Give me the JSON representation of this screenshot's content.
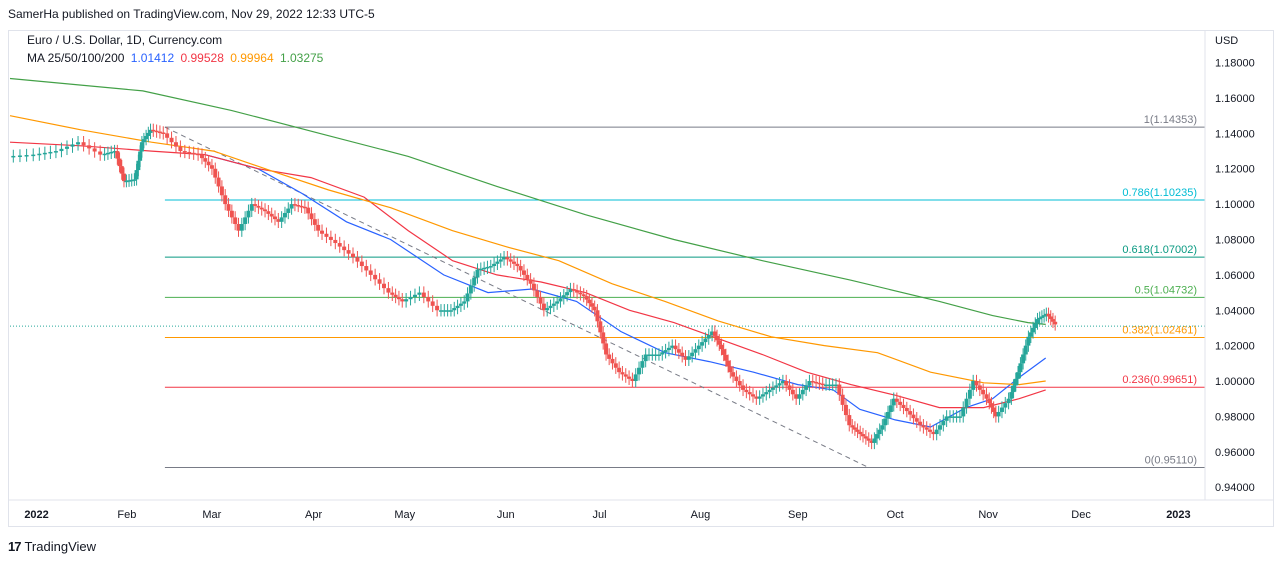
{
  "header": {
    "published_by": "SamerHa published on TradingView.com, Nov 29, 2022 12:33 UTC-5"
  },
  "legend": {
    "symbol_line": "Euro / U.S. Dollar, 1D, Currency.com",
    "ma_label": "MA 25/50/100/200",
    "ma_values": [
      {
        "value": "1.01412",
        "color": "#2962ff"
      },
      {
        "value": "0.99528",
        "color": "#f23645"
      },
      {
        "value": "0.99964",
        "color": "#ff9800"
      },
      {
        "value": "1.03275",
        "color": "#43a047"
      }
    ]
  },
  "footer": {
    "brand": "TradingView"
  },
  "chart_data": {
    "type": "candlestick",
    "title": "Euro / U.S. Dollar, 1D, Currency.com",
    "currency_label": "USD",
    "y_range": [
      0.935,
      1.186
    ],
    "y_ticks": [
      {
        "value": 1.18,
        "label": "1.18000"
      },
      {
        "value": 1.16,
        "label": "1.16000"
      },
      {
        "value": 1.14,
        "label": "1.14000"
      },
      {
        "value": 1.12,
        "label": "1.12000"
      },
      {
        "value": 1.1,
        "label": "1.10000"
      },
      {
        "value": 1.08,
        "label": "1.08000"
      },
      {
        "value": 1.06,
        "label": "1.06000"
      },
      {
        "value": 1.04,
        "label": "1.04000"
      },
      {
        "value": 1.02,
        "label": "1.02000"
      },
      {
        "value": 1.0,
        "label": "1.00000"
      },
      {
        "value": 0.98,
        "label": "0.98000"
      },
      {
        "value": 0.96,
        "label": "0.96000"
      },
      {
        "value": 0.94,
        "label": "0.94000"
      }
    ],
    "x_range": [
      0,
      13.5
    ],
    "x_ticks": [
      {
        "value": 0.3,
        "label": "2022",
        "bold": true
      },
      {
        "value": 1.32,
        "label": "Feb"
      },
      {
        "value": 2.28,
        "label": "Mar"
      },
      {
        "value": 3.43,
        "label": "Apr"
      },
      {
        "value": 4.46,
        "label": "May"
      },
      {
        "value": 5.6,
        "label": "Jun"
      },
      {
        "value": 6.66,
        "label": "Jul"
      },
      {
        "value": 7.8,
        "label": "Aug"
      },
      {
        "value": 8.9,
        "label": "Sep"
      },
      {
        "value": 10.0,
        "label": "Oct"
      },
      {
        "value": 11.05,
        "label": "Nov"
      },
      {
        "value": 12.1,
        "label": "Dec"
      },
      {
        "value": 13.2,
        "label": "2023",
        "bold": true
      }
    ],
    "fib_start_x": 1.75,
    "fib_levels": [
      {
        "level": "1",
        "value": 1.14353,
        "label": "1(1.14353)",
        "color": "#787b86"
      },
      {
        "level": "0.786",
        "value": 1.10235,
        "label": "0.786(1.10235)",
        "color": "#00bcd4"
      },
      {
        "level": "0.618",
        "value": 1.07002,
        "label": "0.618(1.07002)",
        "color": "#089981"
      },
      {
        "level": "0.5",
        "value": 1.04732,
        "label": "0.5(1.04732)",
        "color": "#4caf50"
      },
      {
        "level": "0.382",
        "value": 1.02461,
        "label": "0.382(1.02461)",
        "color": "#ff9800"
      },
      {
        "level": "0.236",
        "value": 0.99651,
        "label": "0.236(0.99651)",
        "color": "#f23645"
      },
      {
        "level": "0",
        "value": 0.9511,
        "label": "0(0.95110)",
        "color": "#787b86"
      }
    ],
    "trend_line": {
      "from": [
        1.75,
        1.14353
      ],
      "to": [
        9.7,
        0.9511
      ],
      "color": "#787b86"
    },
    "current_price": 1.031,
    "series": [
      {
        "name": "MA 25",
        "color": "#2962ff",
        "points": [
          [
            2.2,
            1.128
          ],
          [
            2.8,
            1.12
          ],
          [
            3.3,
            1.106
          ],
          [
            3.8,
            1.09
          ],
          [
            4.3,
            1.08
          ],
          [
            4.9,
            1.06
          ],
          [
            5.4,
            1.05
          ],
          [
            5.9,
            1.052
          ],
          [
            6.4,
            1.045
          ],
          [
            6.9,
            1.028
          ],
          [
            7.4,
            1.016
          ],
          [
            7.9,
            1.011
          ],
          [
            8.4,
            1.005
          ],
          [
            8.9,
            0.998
          ],
          [
            9.3,
            0.995
          ],
          [
            9.6,
            0.984
          ],
          [
            10.0,
            0.978
          ],
          [
            10.4,
            0.974
          ],
          [
            10.8,
            0.985
          ],
          [
            11.1,
            0.99
          ],
          [
            11.4,
            1.002
          ],
          [
            11.7,
            1.013
          ]
        ]
      },
      {
        "name": "MA 50",
        "color": "#f23645",
        "points": [
          [
            0.0,
            1.135
          ],
          [
            0.8,
            1.133
          ],
          [
            1.6,
            1.13
          ],
          [
            2.2,
            1.128
          ],
          [
            2.8,
            1.12
          ],
          [
            3.4,
            1.115
          ],
          [
            4.0,
            1.104
          ],
          [
            4.5,
            1.085
          ],
          [
            5.0,
            1.068
          ],
          [
            5.5,
            1.06
          ],
          [
            6.0,
            1.056
          ],
          [
            6.5,
            1.05
          ],
          [
            7.0,
            1.04
          ],
          [
            7.5,
            1.033
          ],
          [
            8.0,
            1.024
          ],
          [
            8.5,
            1.015
          ],
          [
            9.0,
            1.005
          ],
          [
            9.5,
            0.998
          ],
          [
            10.0,
            0.992
          ],
          [
            10.5,
            0.985
          ],
          [
            11.0,
            0.985
          ],
          [
            11.4,
            0.99
          ],
          [
            11.7,
            0.995
          ]
        ]
      },
      {
        "name": "MA 100",
        "color": "#ff9800",
        "points": [
          [
            0.0,
            1.15
          ],
          [
            0.8,
            1.142
          ],
          [
            1.6,
            1.135
          ],
          [
            2.3,
            1.13
          ],
          [
            3.0,
            1.118
          ],
          [
            3.6,
            1.108
          ],
          [
            4.3,
            1.098
          ],
          [
            5.0,
            1.085
          ],
          [
            5.6,
            1.076
          ],
          [
            6.2,
            1.068
          ],
          [
            6.8,
            1.055
          ],
          [
            7.4,
            1.045
          ],
          [
            8.0,
            1.034
          ],
          [
            8.6,
            1.025
          ],
          [
            9.2,
            1.02
          ],
          [
            9.8,
            1.016
          ],
          [
            10.4,
            1.005
          ],
          [
            11.0,
            0.999
          ],
          [
            11.4,
            0.998
          ],
          [
            11.7,
            1.0
          ]
        ]
      },
      {
        "name": "MA 200",
        "color": "#43a047",
        "points": [
          [
            0.0,
            1.171
          ],
          [
            1.5,
            1.164
          ],
          [
            2.5,
            1.153
          ],
          [
            3.5,
            1.14
          ],
          [
            4.5,
            1.127
          ],
          [
            5.5,
            1.11
          ],
          [
            6.5,
            1.094
          ],
          [
            7.5,
            1.08
          ],
          [
            8.5,
            1.068
          ],
          [
            9.5,
            1.057
          ],
          [
            10.5,
            1.045
          ],
          [
            11.1,
            1.037
          ],
          [
            11.5,
            1.033
          ],
          [
            11.7,
            1.032
          ]
        ]
      },
      {
        "name": "EURUSD",
        "color": "#26a69a",
        "points": [
          [
            0.0,
            1.127
          ],
          [
            0.3,
            1.128
          ],
          [
            0.55,
            1.13
          ],
          [
            0.8,
            1.135
          ],
          [
            1.05,
            1.128
          ],
          [
            1.2,
            1.13
          ],
          [
            1.3,
            1.113
          ],
          [
            1.42,
            1.114
          ],
          [
            1.5,
            1.135
          ],
          [
            1.6,
            1.142
          ],
          [
            1.75,
            1.14
          ],
          [
            1.95,
            1.13
          ],
          [
            2.15,
            1.128
          ],
          [
            2.3,
            1.12
          ],
          [
            2.45,
            1.1
          ],
          [
            2.6,
            1.085
          ],
          [
            2.75,
            1.1
          ],
          [
            2.9,
            1.096
          ],
          [
            3.05,
            1.09
          ],
          [
            3.2,
            1.1
          ],
          [
            3.35,
            1.098
          ],
          [
            3.5,
            1.085
          ],
          [
            3.7,
            1.078
          ],
          [
            3.9,
            1.07
          ],
          [
            4.1,
            1.06
          ],
          [
            4.3,
            1.05
          ],
          [
            4.45,
            1.045
          ],
          [
            4.65,
            1.05
          ],
          [
            4.85,
            1.04
          ],
          [
            5.0,
            1.04
          ],
          [
            5.15,
            1.045
          ],
          [
            5.3,
            1.063
          ],
          [
            5.45,
            1.065
          ],
          [
            5.6,
            1.07
          ],
          [
            5.75,
            1.065
          ],
          [
            5.9,
            1.055
          ],
          [
            6.05,
            1.04
          ],
          [
            6.2,
            1.045
          ],
          [
            6.35,
            1.052
          ],
          [
            6.5,
            1.048
          ],
          [
            6.62,
            1.04
          ],
          [
            6.75,
            1.015
          ],
          [
            6.9,
            1.005
          ],
          [
            7.05,
            1.0
          ],
          [
            7.2,
            1.015
          ],
          [
            7.35,
            1.015
          ],
          [
            7.5,
            1.02
          ],
          [
            7.65,
            1.012
          ],
          [
            7.8,
            1.02
          ],
          [
            7.95,
            1.028
          ],
          [
            8.05,
            1.018
          ],
          [
            8.15,
            1.005
          ],
          [
            8.3,
            0.995
          ],
          [
            8.45,
            0.99
          ],
          [
            8.6,
            0.995
          ],
          [
            8.75,
            1.0
          ],
          [
            8.9,
            0.99
          ],
          [
            9.05,
            1.0
          ],
          [
            9.2,
            0.998
          ],
          [
            9.35,
            0.998
          ],
          [
            9.5,
            0.975
          ],
          [
            9.62,
            0.97
          ],
          [
            9.75,
            0.965
          ],
          [
            9.87,
            0.975
          ],
          [
            10.0,
            0.99
          ],
          [
            10.15,
            0.983
          ],
          [
            10.3,
            0.975
          ],
          [
            10.45,
            0.97
          ],
          [
            10.6,
            0.98
          ],
          [
            10.75,
            0.98
          ],
          [
            10.9,
            1.0
          ],
          [
            11.05,
            0.99
          ],
          [
            11.15,
            0.98
          ],
          [
            11.3,
            0.99
          ],
          [
            11.4,
            1.005
          ],
          [
            11.52,
            1.025
          ],
          [
            11.62,
            1.035
          ],
          [
            11.72,
            1.038
          ],
          [
            11.82,
            1.032
          ]
        ]
      }
    ]
  }
}
